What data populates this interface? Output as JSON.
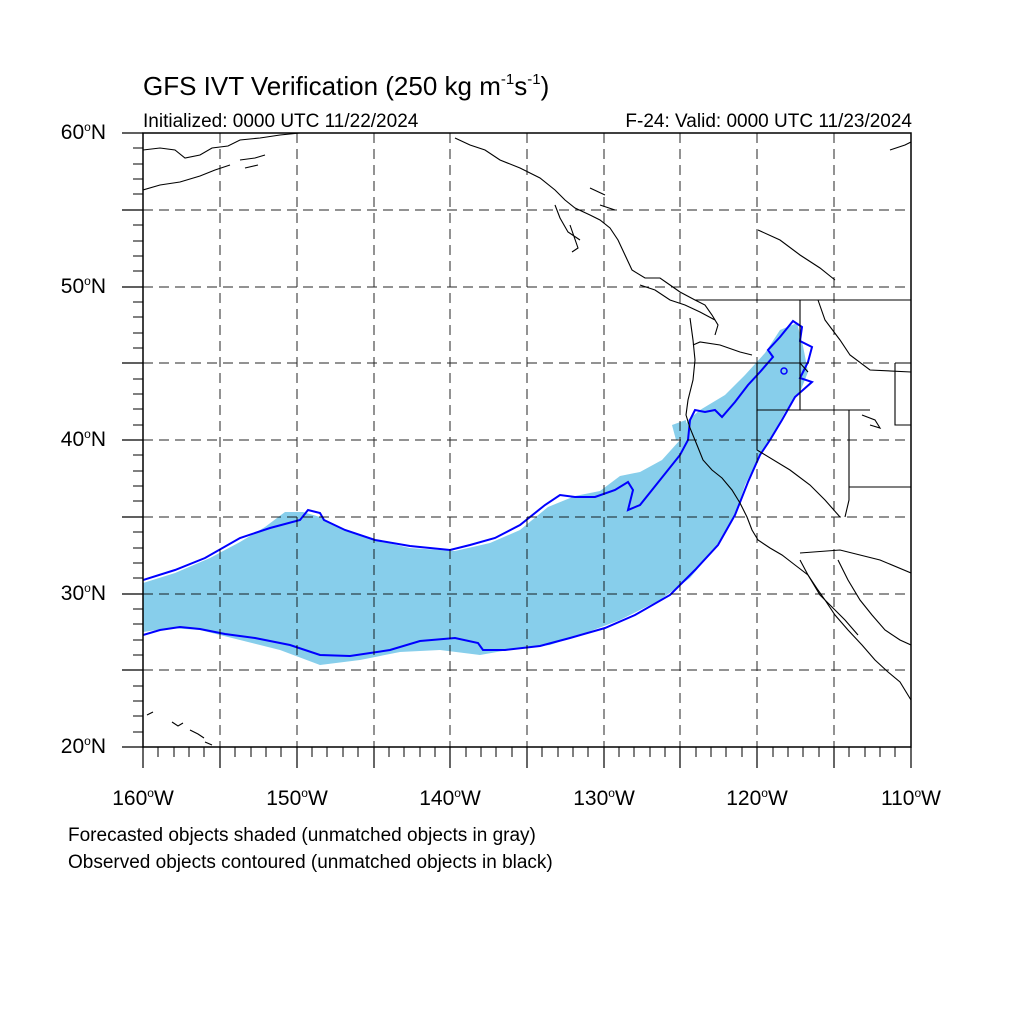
{
  "title": {
    "main": "GFS IVT Verification (250 kg m",
    "sup1": "-1",
    "mid": "s",
    "sup2": "-1",
    "close": ")"
  },
  "initialized": "Initialized: 0000 UTC 11/22/2024",
  "valid": "F-24: Valid: 0000 UTC 11/23/2024",
  "lat_labels": [
    {
      "value": "60",
      "deg": "o",
      "hemi": "N"
    },
    {
      "value": "50",
      "deg": "o",
      "hemi": "N"
    },
    {
      "value": "40",
      "deg": "o",
      "hemi": "N"
    },
    {
      "value": "30",
      "deg": "o",
      "hemi": "N"
    },
    {
      "value": "20",
      "deg": "o",
      "hemi": "N"
    }
  ],
  "lon_labels": [
    {
      "value": "160",
      "deg": "o",
      "hemi": "W"
    },
    {
      "value": "150",
      "deg": "o",
      "hemi": "W"
    },
    {
      "value": "140",
      "deg": "o",
      "hemi": "W"
    },
    {
      "value": "130",
      "deg": "o",
      "hemi": "W"
    },
    {
      "value": "120",
      "deg": "o",
      "hemi": "W"
    },
    {
      "value": "110",
      "deg": "o",
      "hemi": "W"
    }
  ],
  "notes": [
    "Forecasted objects shaded (unmatched objects in gray)",
    "Observed objects contoured (unmatched objects in black)"
  ],
  "map_extent": {
    "lon_min": -160,
    "lon_max": -110,
    "lat_min": 20,
    "lat_max": 60
  },
  "colors": {
    "forecast_fill": "#87ceeb",
    "observed_contour": "#0000ff",
    "coastline": "#000000",
    "grid": "#000000"
  }
}
